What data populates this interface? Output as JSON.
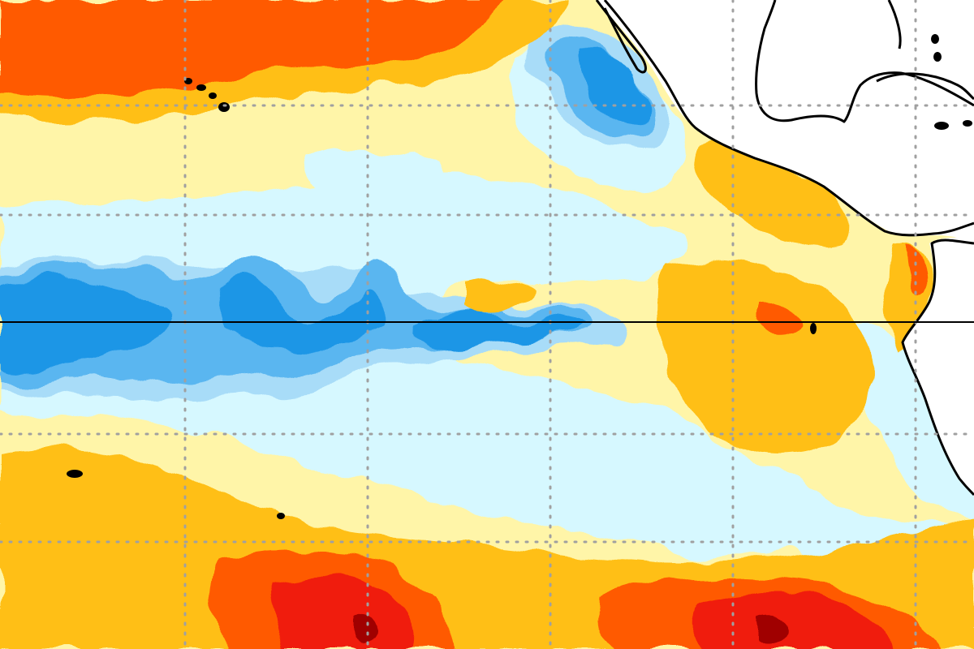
{
  "map": {
    "kind": "sea-surface-temperature-anomaly",
    "region": "tropical-eastern-pacific",
    "palette": {
      "strong_cool": "#1e96e6",
      "moderate_cool": "#5ab6f0",
      "weak_cool": "#a8dcf8",
      "very_weak_cool": "#d6f8ff",
      "weak_warm": "#fff5a8",
      "moderate_warm": "#ffbf16",
      "strong_warm": "#ff5a00",
      "very_strong_warm": "#f01a0a",
      "extreme_warm": "#a00000",
      "land": "#ffffff",
      "coastline": "#000000",
      "graticule": "#a0a0a0",
      "equator": "#000000"
    },
    "features": [
      "equator-line",
      "dotted-graticule",
      "coastline",
      "islands"
    ]
  }
}
